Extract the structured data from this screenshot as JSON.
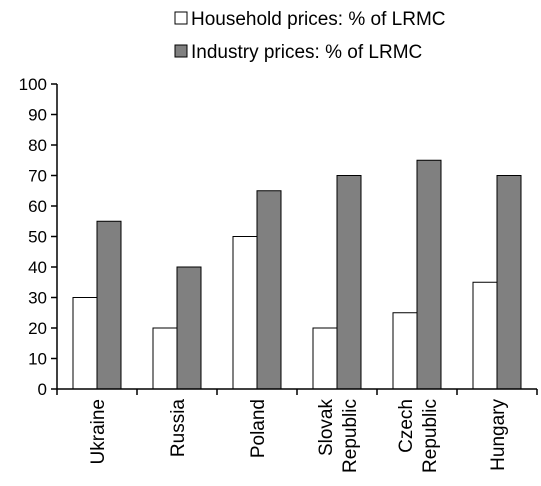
{
  "chart_data": {
    "type": "bar",
    "title": "",
    "xlabel": "",
    "ylabel": "",
    "categories": [
      "Ukraine",
      "Russia",
      "Poland",
      "Slovak Republic",
      "Czech Republic",
      "Hungary"
    ],
    "category_lines": [
      [
        "Ukraine"
      ],
      [
        "Russia"
      ],
      [
        "Poland"
      ],
      [
        "Slovak",
        "Republic"
      ],
      [
        "Czech",
        "Republic"
      ],
      [
        "Hungary"
      ]
    ],
    "series": [
      {
        "name": "Household prices: % of LRMC",
        "color": "#ffffff",
        "values": [
          30,
          20,
          50,
          20,
          25,
          35
        ]
      },
      {
        "name": "Industry prices: % of LRMC",
        "color": "#808080",
        "values": [
          55,
          40,
          65,
          70,
          75,
          70
        ]
      }
    ],
    "ylim": [
      0,
      100
    ],
    "yticks": [
      0,
      10,
      20,
      30,
      40,
      50,
      60,
      70,
      80,
      90,
      100
    ],
    "grid": false,
    "legend_position": "top"
  }
}
